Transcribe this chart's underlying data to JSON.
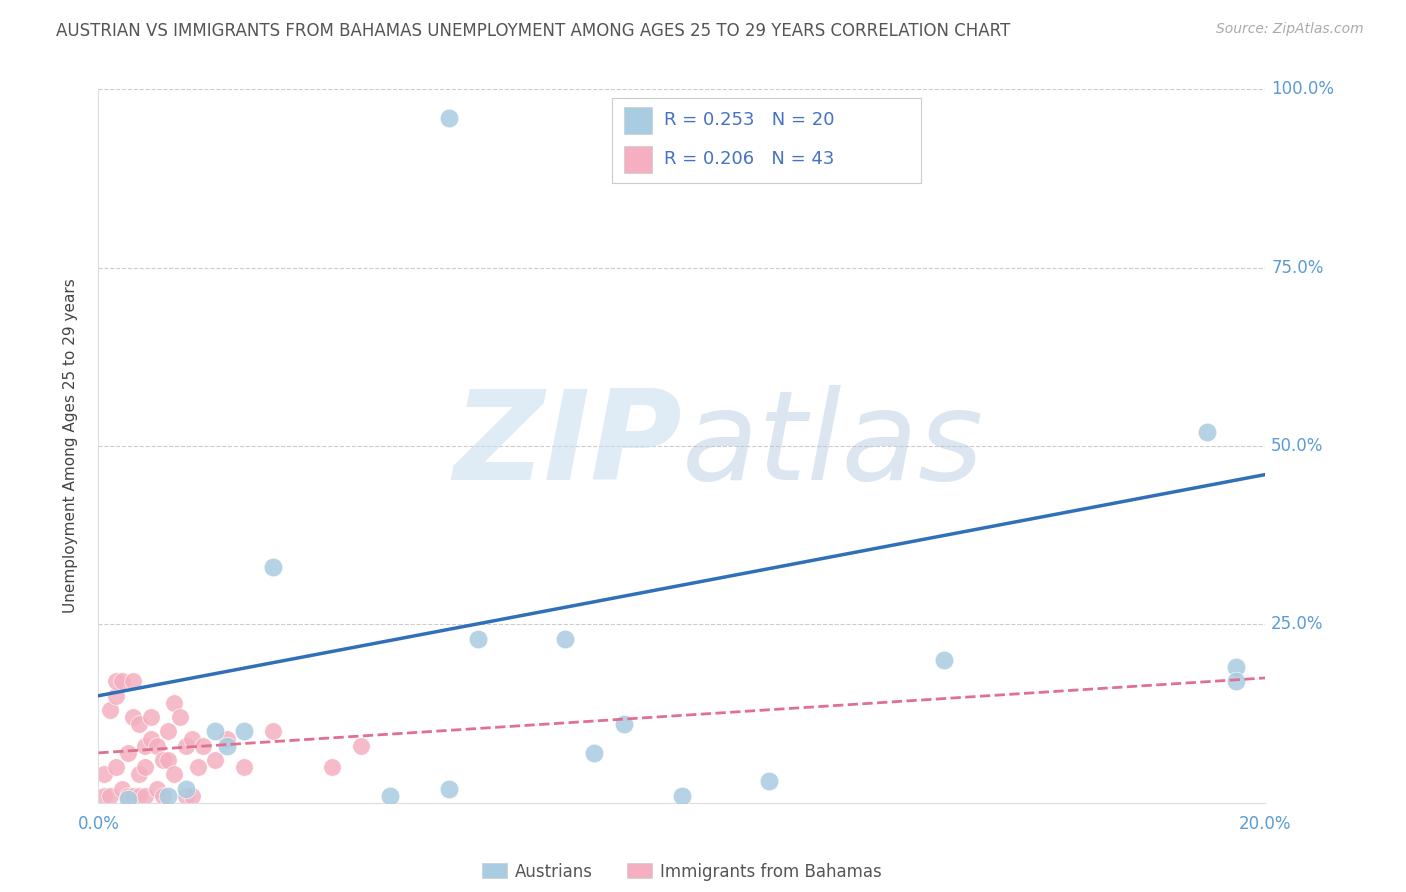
{
  "title": "AUSTRIAN VS IMMIGRANTS FROM BAHAMAS UNEMPLOYMENT AMONG AGES 25 TO 29 YEARS CORRELATION CHART",
  "source": "Source: ZipAtlas.com",
  "ylabel": "Unemployment Among Ages 25 to 29 years",
  "xlim": [
    0.0,
    0.2
  ],
  "ylim": [
    0.0,
    1.0
  ],
  "xticks": [
    0.0,
    0.05,
    0.1,
    0.15,
    0.2
  ],
  "yticks": [
    0.0,
    0.25,
    0.5,
    0.75,
    1.0
  ],
  "xtick_labels": [
    "0.0%",
    "",
    "",
    "",
    "20.0%"
  ],
  "ytick_labels_right": [
    "",
    "25.0%",
    "50.0%",
    "75.0%",
    "100.0%"
  ],
  "watermark_zip": "ZIP",
  "watermark_atlas": "atlas",
  "legend_line1": "R = 0.253   N = 20",
  "legend_line2": "R = 0.206   N = 43",
  "legend_label_blue": "Austrians",
  "legend_label_pink": "Immigrants from Bahamas",
  "blue_scatter_color": "#a8cce0",
  "pink_scatter_color": "#f4afc0",
  "trend_blue_color": "#3070b8",
  "trend_pink_color": "#e07090",
  "legend_text_color": "#4472c4",
  "title_color": "#555555",
  "ylabel_color": "#444444",
  "tick_color": "#5b9bd5",
  "grid_color": "#cccccc",
  "source_color": "#aaaaaa",
  "blue_scatter_x": [
    0.005,
    0.012,
    0.015,
    0.02,
    0.022,
    0.025,
    0.03,
    0.05,
    0.06,
    0.065,
    0.08,
    0.085,
    0.09,
    0.1,
    0.115,
    0.145,
    0.19,
    0.195,
    0.195,
    0.06
  ],
  "blue_scatter_y": [
    0.005,
    0.01,
    0.02,
    0.1,
    0.08,
    0.1,
    0.33,
    0.01,
    0.02,
    0.23,
    0.23,
    0.07,
    0.11,
    0.01,
    0.03,
    0.2,
    0.52,
    0.19,
    0.17,
    0.96
  ],
  "pink_scatter_x": [
    0.001,
    0.001,
    0.002,
    0.002,
    0.003,
    0.003,
    0.003,
    0.004,
    0.004,
    0.005,
    0.005,
    0.006,
    0.006,
    0.006,
    0.007,
    0.007,
    0.007,
    0.008,
    0.008,
    0.008,
    0.009,
    0.009,
    0.01,
    0.01,
    0.011,
    0.011,
    0.012,
    0.012,
    0.013,
    0.013,
    0.014,
    0.015,
    0.015,
    0.016,
    0.016,
    0.017,
    0.018,
    0.02,
    0.022,
    0.025,
    0.03,
    0.04,
    0.045
  ],
  "pink_scatter_y": [
    0.01,
    0.04,
    0.01,
    0.13,
    0.15,
    0.17,
    0.05,
    0.02,
    0.17,
    0.01,
    0.07,
    0.01,
    0.12,
    0.17,
    0.01,
    0.11,
    0.04,
    0.01,
    0.05,
    0.08,
    0.09,
    0.12,
    0.02,
    0.08,
    0.01,
    0.06,
    0.1,
    0.06,
    0.04,
    0.14,
    0.12,
    0.01,
    0.08,
    0.01,
    0.09,
    0.05,
    0.08,
    0.06,
    0.09,
    0.05,
    0.1,
    0.05,
    0.08
  ],
  "blue_trend_x": [
    0.0,
    0.2
  ],
  "blue_trend_y": [
    0.15,
    0.46
  ],
  "pink_trend_x": [
    0.0,
    0.2
  ],
  "pink_trend_y": [
    0.07,
    0.175
  ]
}
